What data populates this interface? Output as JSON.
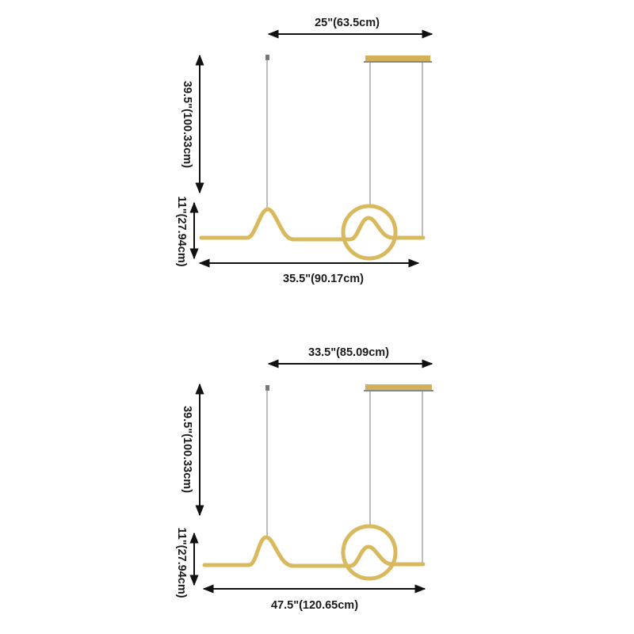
{
  "colors": {
    "gold": "#d9b95e",
    "cable": "#9a9a9a",
    "arrow": "#111111"
  },
  "diagrams": [
    {
      "canopy_width_label": "25\"(63.5cm)",
      "cable_length_label": "39.5\"(100.33cm)",
      "fixture_height_label": "11\"(27.94cm)",
      "overall_width_label": "35.5\"(90.17cm)"
    },
    {
      "canopy_width_label": "33.5\"(85.09cm)",
      "cable_length_label": "39.5\"(100.33cm)",
      "fixture_height_label": "11\"(27.94cm)",
      "overall_width_label": "47.5\"(120.65cm)"
    }
  ]
}
